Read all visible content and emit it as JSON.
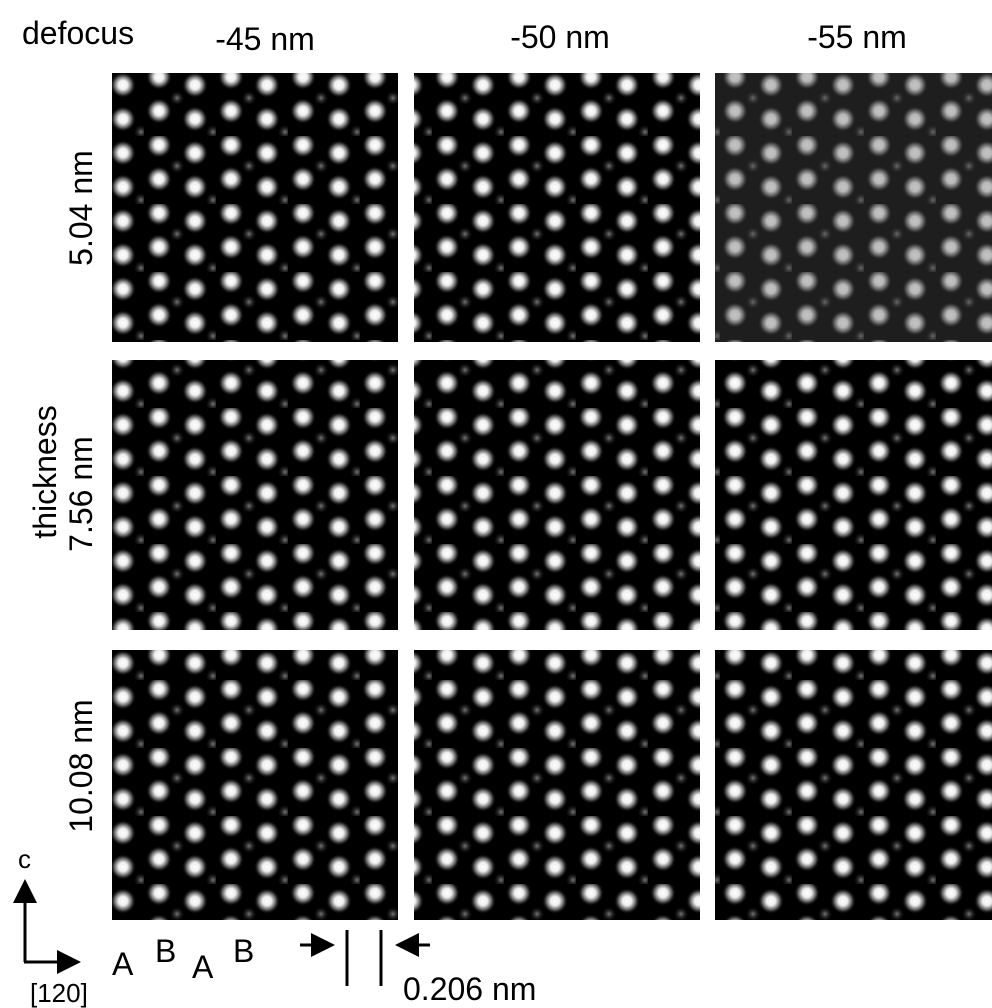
{
  "header": {
    "corner_label": "defocus",
    "columns": [
      "-45 nm",
      "-50 nm",
      "-55 nm"
    ]
  },
  "rows": {
    "thickness_label": "thickness",
    "labels": [
      "5.04 nm",
      "7.56 nm",
      "10.08 nm"
    ]
  },
  "axes": {
    "vertical": "c",
    "horizontal": "[120]"
  },
  "stacking": [
    "A",
    "B",
    "A",
    "B"
  ],
  "scale": {
    "label": "0.206 nm"
  }
}
